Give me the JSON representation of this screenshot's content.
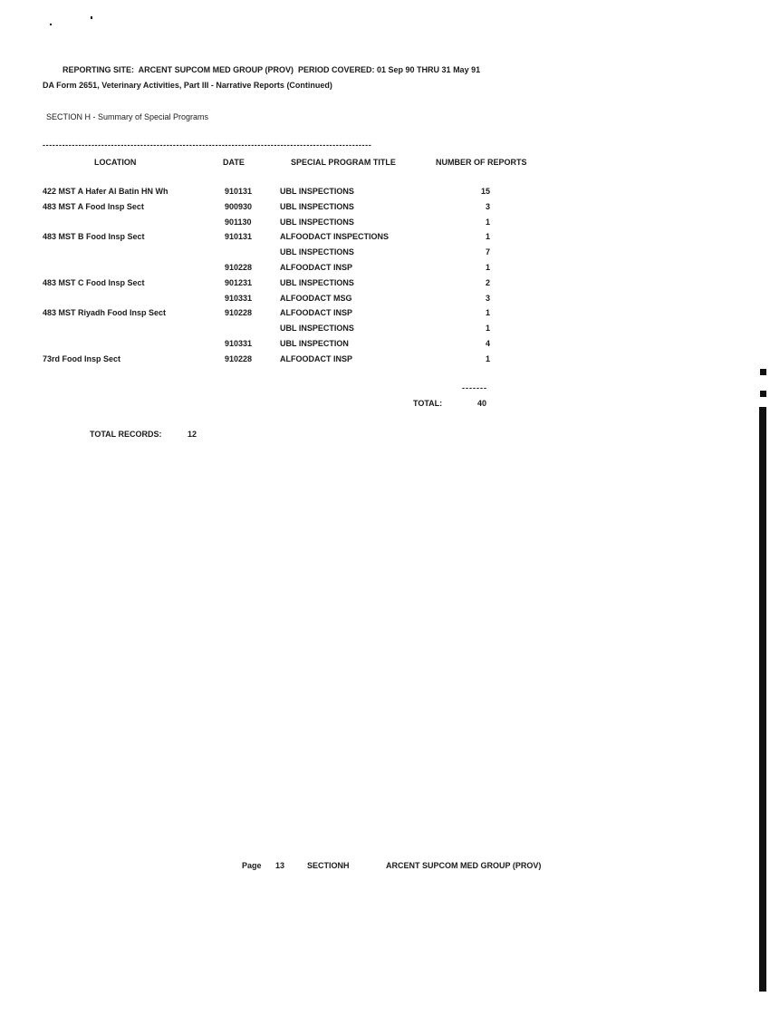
{
  "header": {
    "reporting_site_line": "REPORTING SITE:  ARCENT SUPCOM MED GROUP (PROV)  PERIOD COVERED: 01 Sep 90 THRU 31 May 91",
    "form_line": "DA Form 2651, Veterinary Activities, Part III - Narrative Reports (Continued)",
    "section_title": "SECTION H - Summary of Special Programs"
  },
  "table": {
    "separator": "-----------------------------------------------------------------------------------------------------",
    "columns": [
      "LOCATION",
      "DATE",
      "SPECIAL PROGRAM TITLE",
      "NUMBER OF REPORTS"
    ],
    "rows": [
      {
        "location": "422 MST A Hafer Al Batin HN Wh",
        "date": "910131",
        "title": "UBL INSPECTIONS",
        "count": "15"
      },
      {
        "location": "483 MST A Food Insp Sect",
        "date": "900930",
        "title": "UBL INSPECTIONS",
        "count": "3"
      },
      {
        "location": "",
        "date": "901130",
        "title": "UBL INSPECTIONS",
        "count": "1"
      },
      {
        "location": "483 MST B Food Insp Sect",
        "date": "910131",
        "title": "ALFOODACT INSPECTIONS",
        "count": "1"
      },
      {
        "location": "",
        "date": "",
        "title": "UBL INSPECTIONS",
        "count": "7"
      },
      {
        "location": "",
        "date": "910228",
        "title": "ALFOODACT INSP",
        "count": "1"
      },
      {
        "location": "483 MST C Food Insp Sect",
        "date": "901231",
        "title": "UBL INSPECTIONS",
        "count": "2"
      },
      {
        "location": "",
        "date": "910331",
        "title": "ALFOODACT MSG",
        "count": "3"
      },
      {
        "location": "483 MST Riyadh Food Insp Sect",
        "date": "910228",
        "title": "ALFOODACT INSP",
        "count": "1"
      },
      {
        "location": "",
        "date": "",
        "title": "UBL INSPECTIONS",
        "count": "1"
      },
      {
        "location": "",
        "date": "910331",
        "title": "UBL INSPECTION",
        "count": "4"
      },
      {
        "location": "73rd Food Insp Sect",
        "date": "910228",
        "title": "ALFOODACT INSP",
        "count": "1"
      }
    ],
    "total_rule": "-------",
    "total_label": "TOTAL:",
    "total_value": "40"
  },
  "summary": {
    "records_label": "TOTAL RECORDS:",
    "records_value": "12"
  },
  "footer": {
    "page_label": "Page",
    "page_number": "13",
    "section_label": "SECTION",
    "section_value": "H",
    "org": "ARCENT SUPCOM MED GROUP (PROV)"
  }
}
